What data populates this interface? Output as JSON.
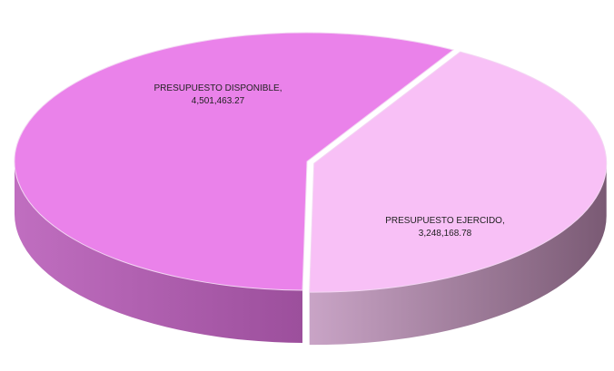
{
  "chart_data": {
    "type": "pie",
    "categories": [
      "PRESUPUESTO DISPONIBLE,",
      "PRESUPUESTO EJERCIDO,"
    ],
    "values": [
      4501463.27,
      3248168.78
    ],
    "value_labels": [
      "4,501,463.27",
      "3,248,168.78"
    ],
    "colors": [
      "#ea82ea",
      "#f8c0f6"
    ]
  }
}
